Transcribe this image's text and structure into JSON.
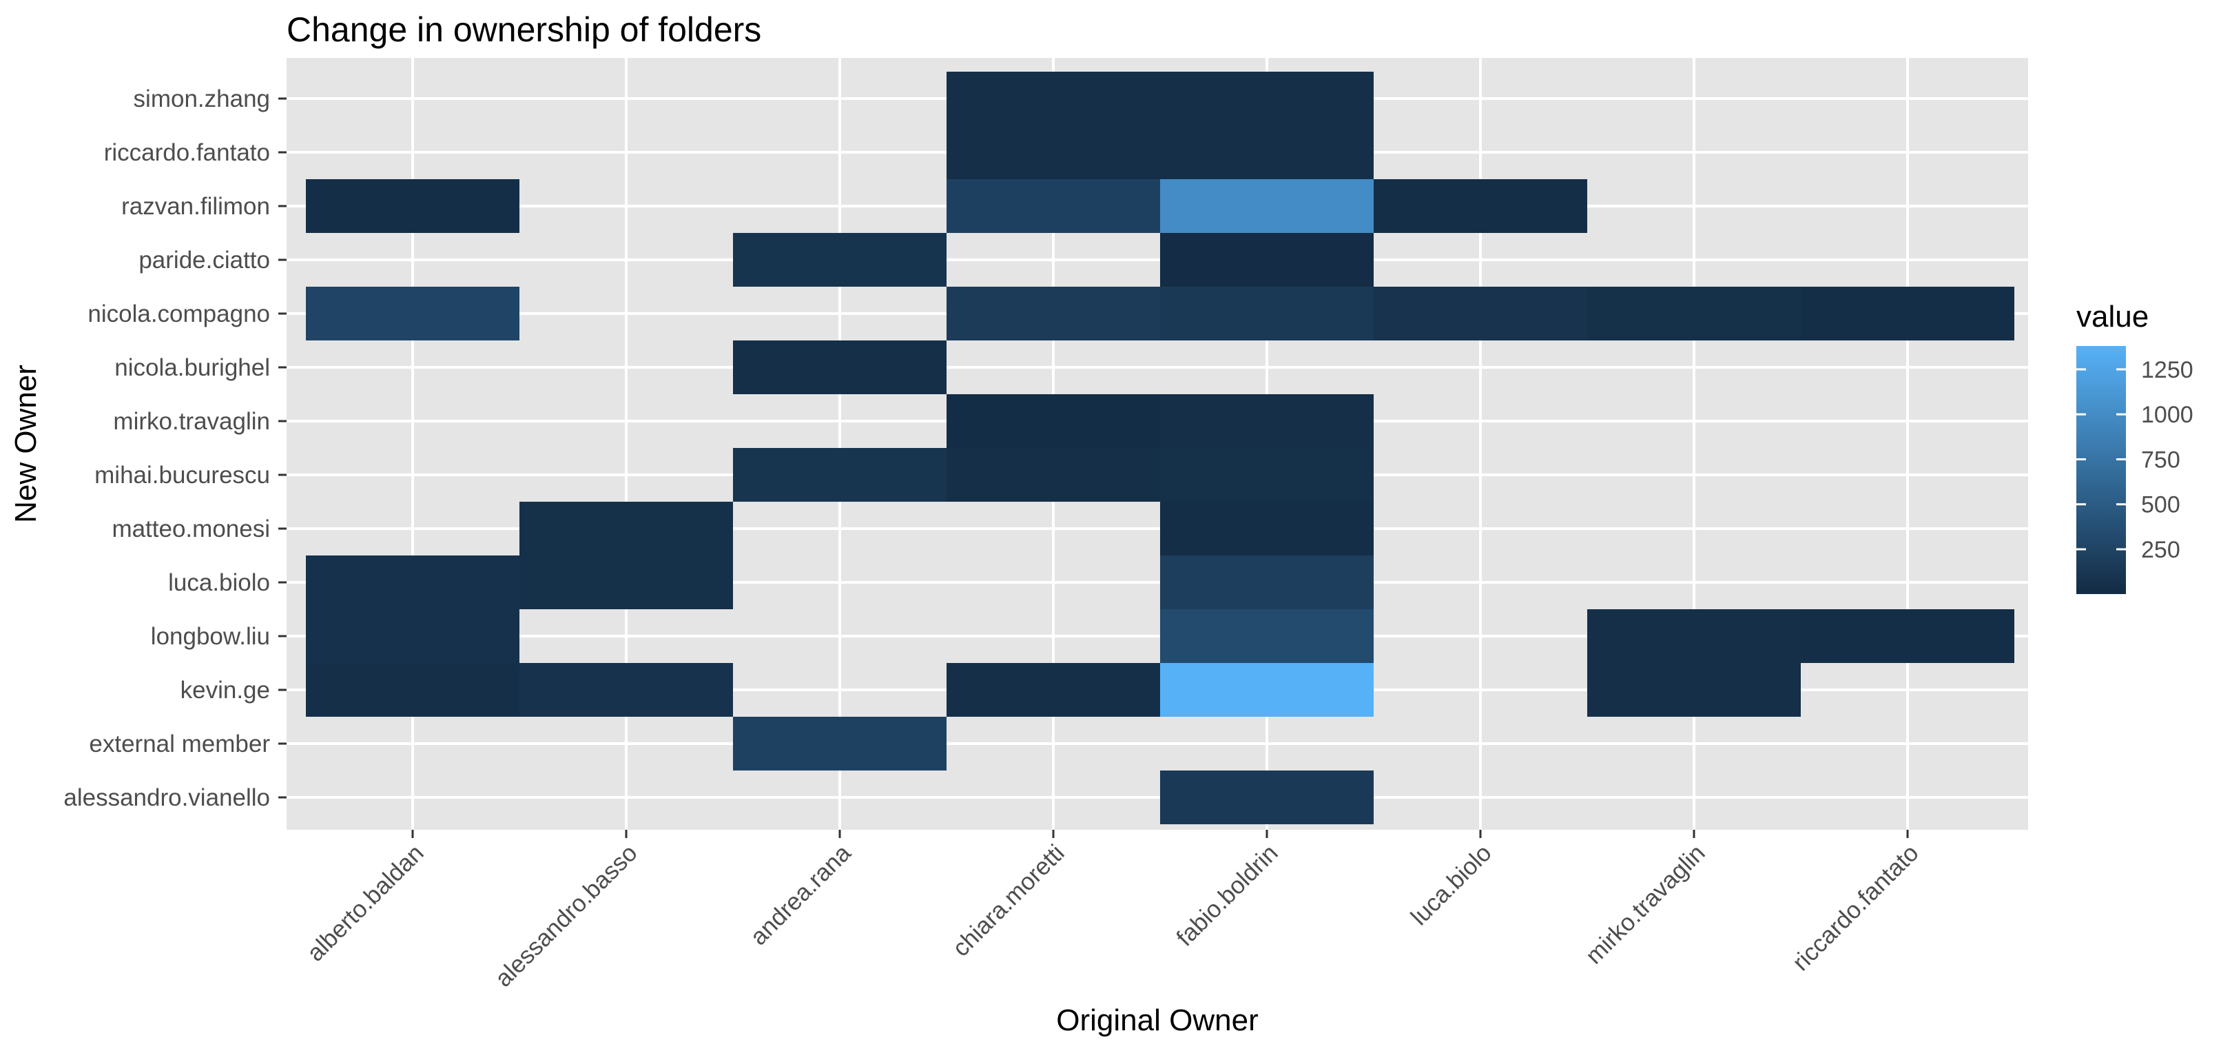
{
  "chart_data": {
    "type": "heatmap",
    "title": "Change in ownership of folders",
    "xlabel": "Original Owner",
    "ylabel": "New Owner",
    "x_categories": [
      "alberto.baldan",
      "alessandro.basso",
      "andrea.rana",
      "chiara.moretti",
      "fabio.boldrin",
      "luca.biolo",
      "mirko.travaglin",
      "riccardo.fantato"
    ],
    "y_categories": [
      "simon.zhang",
      "riccardo.fantato",
      "razvan.filimon",
      "paride.ciatto",
      "nicola.compagno",
      "nicola.burighel",
      "mirko.travaglin",
      "mihai.bucurescu",
      "matteo.monesi",
      "luca.biolo",
      "longbow.liu",
      "kevin.ge",
      "external member",
      "alessandro.vianello"
    ],
    "cells": [
      {
        "x": "chiara.moretti",
        "y": "simon.zhang",
        "value": 40
      },
      {
        "x": "fabio.boldrin",
        "y": "simon.zhang",
        "value": 45
      },
      {
        "x": "chiara.moretti",
        "y": "riccardo.fantato",
        "value": 40
      },
      {
        "x": "fabio.boldrin",
        "y": "riccardo.fantato",
        "value": 45
      },
      {
        "x": "alberto.baldan",
        "y": "razvan.filimon",
        "value": 30
      },
      {
        "x": "chiara.moretti",
        "y": "razvan.filimon",
        "value": 220
      },
      {
        "x": "fabio.boldrin",
        "y": "razvan.filimon",
        "value": 1000
      },
      {
        "x": "luca.biolo",
        "y": "razvan.filimon",
        "value": 30
      },
      {
        "x": "andrea.rana",
        "y": "paride.ciatto",
        "value": 90
      },
      {
        "x": "fabio.boldrin",
        "y": "paride.ciatto",
        "value": 15
      },
      {
        "x": "alberto.baldan",
        "y": "nicola.compagno",
        "value": 260
      },
      {
        "x": "chiara.moretti",
        "y": "nicola.compagno",
        "value": 170
      },
      {
        "x": "fabio.boldrin",
        "y": "nicola.compagno",
        "value": 140
      },
      {
        "x": "luca.biolo",
        "y": "nicola.compagno",
        "value": 80
      },
      {
        "x": "mirko.travaglin",
        "y": "nicola.compagno",
        "value": 50
      },
      {
        "x": "riccardo.fantato",
        "y": "nicola.compagno",
        "value": 30
      },
      {
        "x": "andrea.rana",
        "y": "nicola.burighel",
        "value": 40
      },
      {
        "x": "chiara.moretti",
        "y": "mirko.travaglin",
        "value": 25
      },
      {
        "x": "fabio.boldrin",
        "y": "mirko.travaglin",
        "value": 40
      },
      {
        "x": "andrea.rana",
        "y": "mihai.bucurescu",
        "value": 100
      },
      {
        "x": "chiara.moretti",
        "y": "mihai.bucurescu",
        "value": 40
      },
      {
        "x": "fabio.boldrin",
        "y": "mihai.bucurescu",
        "value": 50
      },
      {
        "x": "alessandro.basso",
        "y": "matteo.monesi",
        "value": 50
      },
      {
        "x": "fabio.boldrin",
        "y": "matteo.monesi",
        "value": 30
      },
      {
        "x": "alberto.baldan",
        "y": "luca.biolo",
        "value": 60
      },
      {
        "x": "alessandro.basso",
        "y": "luca.biolo",
        "value": 50
      },
      {
        "x": "fabio.boldrin",
        "y": "luca.biolo",
        "value": 200
      },
      {
        "x": "alberto.baldan",
        "y": "longbow.liu",
        "value": 60
      },
      {
        "x": "fabio.boldrin",
        "y": "longbow.liu",
        "value": 330
      },
      {
        "x": "mirko.travaglin",
        "y": "longbow.liu",
        "value": 40
      },
      {
        "x": "riccardo.fantato",
        "y": "longbow.liu",
        "value": 30
      },
      {
        "x": "alberto.baldan",
        "y": "kevin.ge",
        "value": 40
      },
      {
        "x": "alessandro.basso",
        "y": "kevin.ge",
        "value": 70
      },
      {
        "x": "chiara.moretti",
        "y": "kevin.ge",
        "value": 40
      },
      {
        "x": "fabio.boldrin",
        "y": "kevin.ge",
        "value": 1380
      },
      {
        "x": "mirko.travaglin",
        "y": "kevin.ge",
        "value": 40
      },
      {
        "x": "andrea.rana",
        "y": "external member",
        "value": 230
      },
      {
        "x": "fabio.boldrin",
        "y": "alessandro.vianello",
        "value": 150
      }
    ],
    "legend": {
      "title": "value",
      "position": "right",
      "ticks": [
        250,
        500,
        750,
        1000,
        1250
      ],
      "tick_labels": [
        "250",
        "500",
        "750",
        "1000",
        "1250"
      ],
      "range": [
        1,
        1380
      ],
      "low_color": "#132B43",
      "high_color": "#56B1F7"
    },
    "grid": true,
    "panel_color": "#E5E5E5"
  }
}
